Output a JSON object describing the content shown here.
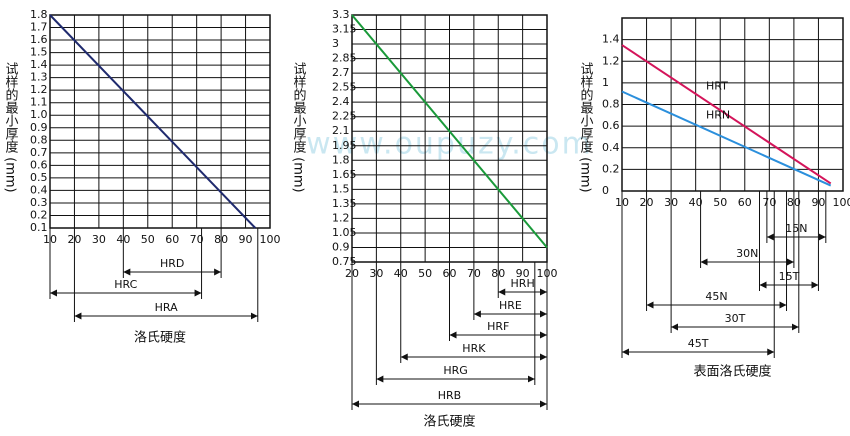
{
  "chart_data": [
    {
      "type": "line",
      "y_label": "试样的最小厚度 (mm)",
      "x_label": "洛氏硬度",
      "xlim": [
        10,
        100
      ],
      "xticks": [
        10,
        20,
        30,
        40,
        50,
        60,
        70,
        80,
        90,
        100
      ],
      "ylim": [
        0.1,
        1.8
      ],
      "yticks": [
        0.1,
        0.2,
        0.3,
        0.4,
        0.5,
        0.6,
        0.7,
        0.8,
        0.9,
        {
          "value": 1,
          "label": "1.0"
        },
        1.1,
        1.2,
        1.3,
        1.4,
        1.5,
        1.6,
        1.7,
        1.8
      ],
      "grid": true,
      "series": [
        {
          "color": "#1f2a6e",
          "x": [
            10,
            94
          ],
          "values": [
            1.8,
            0.1
          ]
        }
      ],
      "ranges": [
        {
          "name": "HRD",
          "values": [
            40,
            80
          ]
        },
        {
          "name": "HRC",
          "values": [
            10,
            72
          ]
        },
        {
          "name": "HRA",
          "values": [
            20,
            95
          ]
        }
      ]
    },
    {
      "type": "line",
      "y_label": "试样的最小厚度 (mm)",
      "x_label": "洛氏硬度",
      "watermark": "www.oupuzy.com",
      "xlim": [
        20,
        100
      ],
      "xticks": [
        20,
        30,
        40,
        50,
        60,
        70,
        80,
        90,
        100
      ],
      "ylim": [
        0.75,
        3.3
      ],
      "yticks": [
        0.75,
        0.9,
        1.05,
        1.2,
        1.35,
        1.5,
        1.65,
        1.8,
        1.95,
        2.1,
        2.25,
        2.4,
        2.55,
        2.7,
        2.85,
        3,
        3.15,
        3.3
      ],
      "grid": true,
      "series": [
        {
          "color": "#1a9a3a",
          "x": [
            20,
            100
          ],
          "values": [
            3.3,
            0.9
          ]
        }
      ],
      "ranges": [
        {
          "name": "HRH",
          "values": [
            80,
            100
          ]
        },
        {
          "name": "HRE",
          "values": [
            70,
            100
          ]
        },
        {
          "name": "HRF",
          "values": [
            60,
            100
          ]
        },
        {
          "name": "HRK",
          "values": [
            40,
            100
          ]
        },
        {
          "name": "HRG",
          "values": [
            30,
            95
          ]
        },
        {
          "name": "HRB",
          "values": [
            20,
            100
          ]
        }
      ]
    },
    {
      "type": "line",
      "y_label": "试样的最小厚度 (mm)",
      "x_label": "表面洛氏硬度",
      "xlim": [
        10,
        100
      ],
      "xticks": [
        10,
        20,
        30,
        40,
        50,
        60,
        70,
        80,
        90,
        100
      ],
      "ylim": [
        0,
        1.6
      ],
      "yticks": [
        0,
        0.2,
        0.4,
        0.6,
        0.8,
        1,
        1.2,
        1.4
      ],
      "grid": true,
      "series": [
        {
          "name": "HRT",
          "color": "#d4145a",
          "x": [
            10,
            95
          ],
          "values": [
            1.35,
            0.07
          ]
        },
        {
          "name": "HRN",
          "color": "#2b8fdc",
          "x": [
            10,
            95
          ],
          "values": [
            0.92,
            0.05
          ]
        }
      ],
      "ranges": [
        {
          "name": "15N",
          "values": [
            69,
            93
          ]
        },
        {
          "name": "30N",
          "values": [
            42,
            80
          ]
        },
        {
          "name": "15T",
          "values": [
            66,
            90
          ]
        },
        {
          "name": "45N",
          "values": [
            20,
            77
          ]
        },
        {
          "name": "30T",
          "values": [
            30,
            82
          ]
        },
        {
          "name": "45T",
          "values": [
            10,
            72
          ]
        }
      ]
    }
  ]
}
